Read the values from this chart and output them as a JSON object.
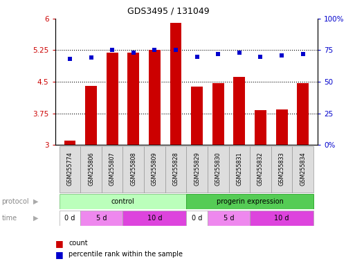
{
  "title": "GDS3495 / 131049",
  "samples": [
    "GSM255774",
    "GSM255806",
    "GSM255807",
    "GSM255808",
    "GSM255809",
    "GSM255828",
    "GSM255829",
    "GSM255830",
    "GSM255831",
    "GSM255832",
    "GSM255833",
    "GSM255834"
  ],
  "bar_values": [
    3.1,
    4.4,
    5.2,
    5.2,
    5.25,
    5.9,
    4.38,
    4.47,
    4.62,
    3.83,
    3.85,
    4.47
  ],
  "dot_values_pct": [
    68,
    69,
    75,
    73,
    75,
    75,
    70,
    72,
    73,
    70,
    71,
    72
  ],
  "ylim_left": [
    3,
    6
  ],
  "ylim_right": [
    0,
    100
  ],
  "yticks_left": [
    3,
    3.75,
    4.5,
    5.25,
    6
  ],
  "ytick_labels_left": [
    "3",
    "3.75",
    "4.5",
    "5.25",
    "6"
  ],
  "yticks_right": [
    0,
    25,
    50,
    75,
    100
  ],
  "ytick_labels_right": [
    "0%",
    "25",
    "50",
    "75",
    "100%"
  ],
  "bar_color": "#cc0000",
  "dot_color": "#0000cc",
  "legend_count_label": "count",
  "legend_pct_label": "percentile rank within the sample",
  "xlabel_protocol": "protocol",
  "xlabel_time": "time",
  "control_color_light": "#bbffbb",
  "control_color_dark": "#55cc55",
  "time_colors": [
    "#ffffff",
    "#ee88ee",
    "#dd44dd"
  ],
  "time_defs": [
    [
      0,
      1,
      "0 d",
      0
    ],
    [
      1,
      3,
      "5 d",
      1
    ],
    [
      3,
      6,
      "10 d",
      2
    ],
    [
      6,
      7,
      "0 d",
      0
    ],
    [
      7,
      9,
      "5 d",
      1
    ],
    [
      9,
      12,
      "10 d",
      2
    ]
  ]
}
